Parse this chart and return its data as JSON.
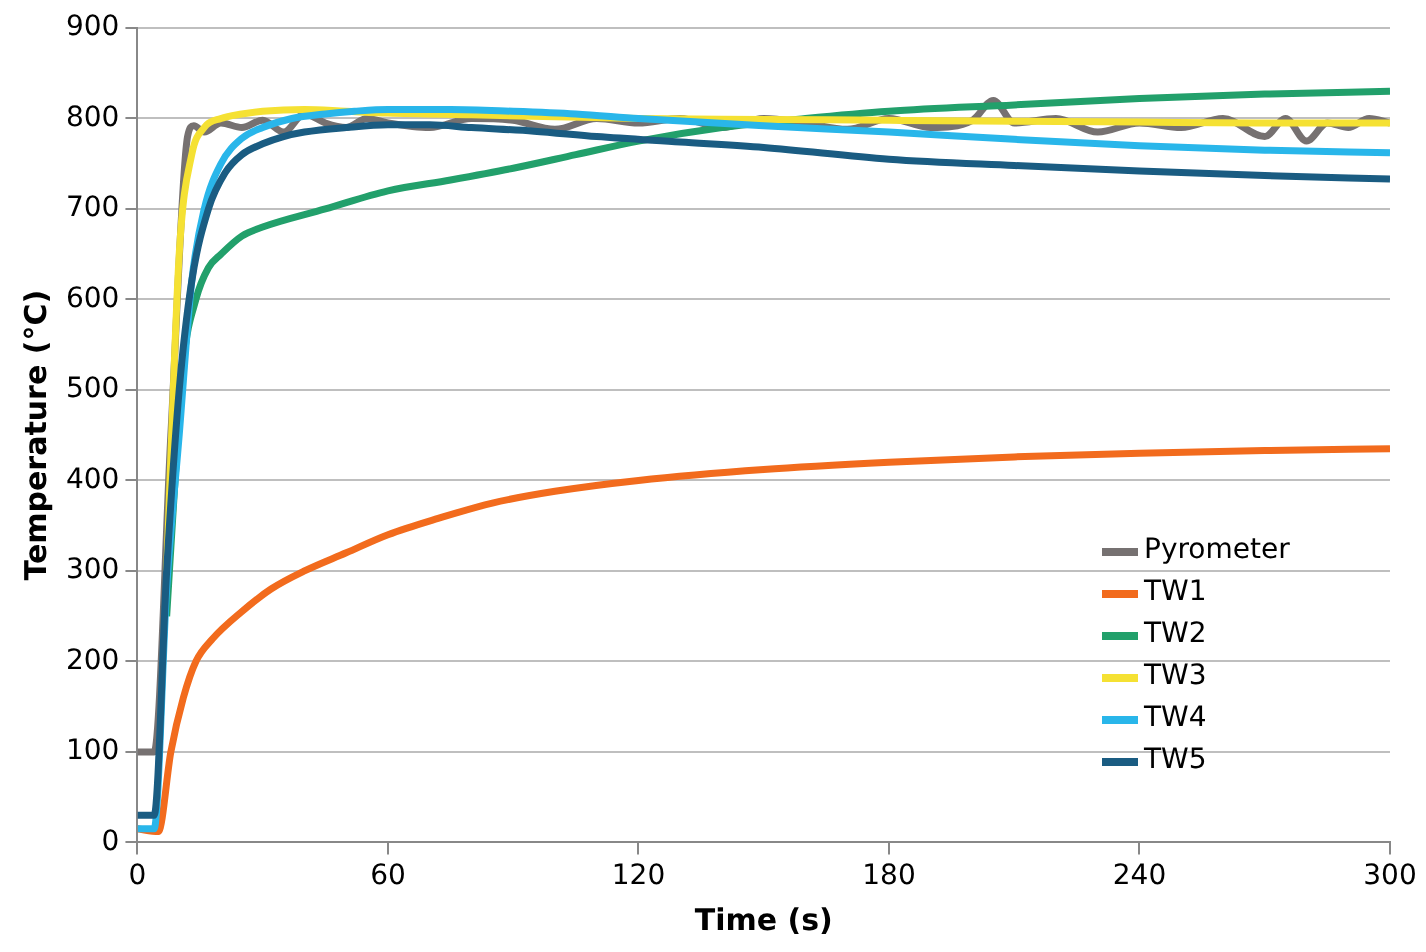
{
  "chart_data": {
    "type": "line",
    "xlabel": "Time (s)",
    "ylabel": "Temperature (°C)",
    "xlim": [
      0,
      300
    ],
    "xticks": [
      0,
      60,
      120,
      180,
      240,
      300
    ],
    "ylim": [
      0,
      900
    ],
    "yticks": [
      0,
      100,
      200,
      300,
      400,
      500,
      600,
      700,
      800,
      900
    ],
    "grid": "y",
    "legend": "bottom right",
    "marker": "none",
    "line_style": "solid",
    "series": [
      {
        "name": "Pyrometer",
        "color": "#767171",
        "x": [
          0,
          4,
          8,
          12,
          13.5,
          16,
          20,
          25,
          30,
          35,
          40,
          45,
          50,
          55,
          60,
          70,
          80,
          90,
          100,
          110,
          120,
          130,
          140,
          150,
          160,
          170,
          180,
          190,
          200,
          205,
          210,
          220,
          230,
          240,
          250,
          260,
          270,
          275,
          280,
          285,
          290,
          295,
          300
        ],
        "values": [
          100,
          100,
          450,
          780,
          792,
          785,
          795,
          790,
          798,
          785,
          805,
          795,
          790,
          800,
          795,
          790,
          800,
          798,
          788,
          800,
          795,
          800,
          790,
          800,
          795,
          788,
          800,
          790,
          798,
          820,
          795,
          800,
          785,
          795,
          790,
          800,
          780,
          800,
          775,
          795,
          790,
          800,
          795
        ]
      },
      {
        "name": "TW1",
        "color": "#f26b1d",
        "x": [
          0,
          5,
          8,
          11,
          14,
          18,
          25,
          32,
          40,
          50,
          60,
          72,
          85,
          100,
          120,
          150,
          180,
          210,
          240,
          270,
          300
        ],
        "values": [
          15,
          12,
          100,
          160,
          200,
          225,
          255,
          280,
          300,
          320,
          340,
          358,
          375,
          388,
          400,
          412,
          420,
          426,
          430,
          433,
          435
        ]
      },
      {
        "name": "TW2",
        "color": "#22a06b",
        "x": [
          7,
          9,
          11,
          14,
          17,
          20,
          25,
          30,
          45,
          60,
          75,
          90,
          105,
          120,
          140,
          160,
          180,
          210,
          240,
          270,
          300
        ],
        "values": [
          250,
          400,
          530,
          600,
          635,
          650,
          670,
          680,
          700,
          720,
          732,
          745,
          760,
          775,
          790,
          800,
          808,
          815,
          822,
          827,
          830
        ]
      },
      {
        "name": "TW3",
        "color": "#f5e133",
        "x": [
          7,
          10,
          13,
          16,
          20,
          25,
          30,
          40,
          50,
          60,
          80,
          100,
          120,
          150,
          180,
          210,
          240,
          270,
          300
        ],
        "values": [
          300,
          650,
          760,
          790,
          800,
          805,
          808,
          810,
          808,
          806,
          804,
          802,
          800,
          799,
          798,
          797,
          796,
          795,
          795
        ]
      },
      {
        "name": "TW4",
        "color": "#29b6ea",
        "x": [
          0,
          4,
          7,
          10,
          13,
          16,
          20,
          25,
          30,
          37,
          45,
          52,
          60,
          75,
          90,
          105,
          120,
          150,
          180,
          210,
          240,
          270,
          300
        ],
        "values": [
          15,
          15,
          280,
          450,
          620,
          700,
          750,
          778,
          790,
          800,
          805,
          808,
          810,
          810,
          808,
          805,
          800,
          792,
          785,
          777,
          770,
          765,
          762
        ]
      },
      {
        "name": "TW5",
        "color": "#1a5c82",
        "x": [
          0,
          4,
          7,
          10,
          13,
          17,
          21,
          25,
          30,
          35,
          40,
          50,
          60,
          70,
          80,
          95,
          110,
          130,
          150,
          180,
          210,
          240,
          270,
          300
        ],
        "values": [
          30,
          30,
          300,
          500,
          620,
          700,
          740,
          760,
          772,
          780,
          785,
          790,
          793,
          793,
          790,
          786,
          780,
          774,
          768,
          755,
          748,
          742,
          737,
          733
        ]
      }
    ]
  }
}
